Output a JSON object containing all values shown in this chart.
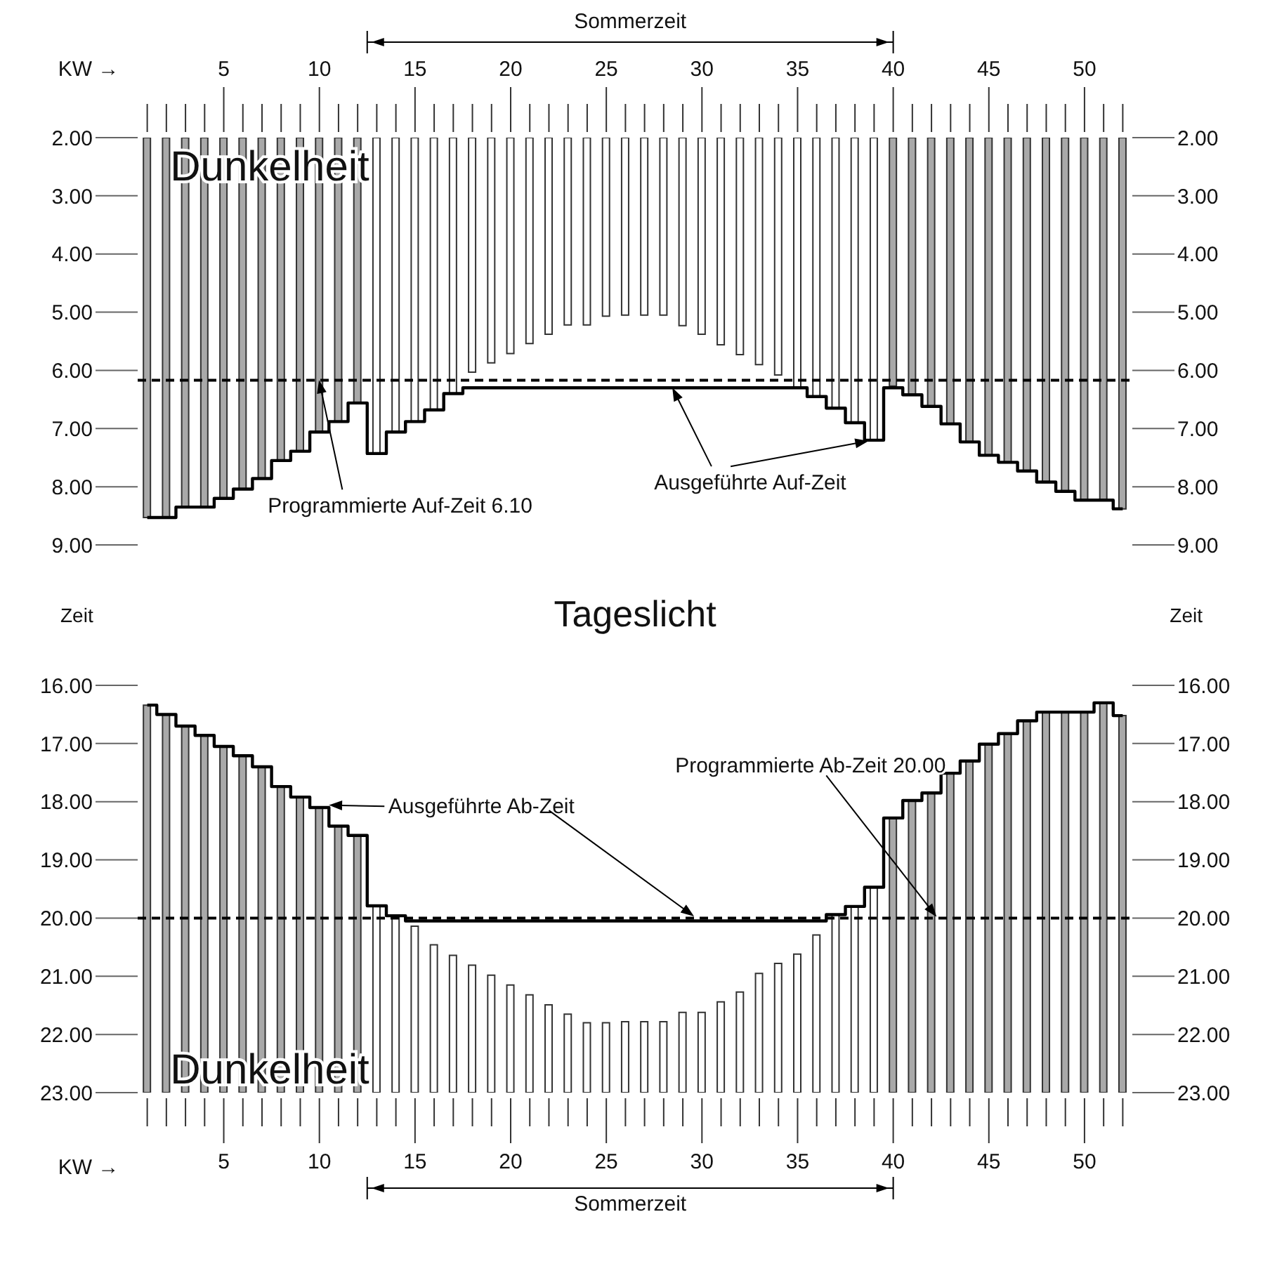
{
  "chart_data": [
    {
      "type": "bar",
      "xlabel": "KW →",
      "ylabel": "Zeit",
      "y2label": "Zeit",
      "categories": [
        null,
        null,
        null,
        null,
        "5",
        null,
        null,
        null,
        null,
        "10",
        null,
        null,
        null,
        null,
        "15",
        null,
        null,
        null,
        null,
        "20",
        null,
        null,
        null,
        null,
        "25",
        null,
        null,
        null,
        null,
        "30",
        null,
        null,
        null,
        null,
        "35",
        null,
        null,
        null,
        null,
        "40",
        null,
        null,
        null,
        null,
        "45",
        null,
        null,
        null,
        null,
        "50",
        null,
        null
      ],
      "series": [
        {
          "base": [
            2,
            2,
            2,
            2,
            2,
            2,
            2,
            2,
            2,
            2,
            2,
            2,
            2,
            2,
            2,
            2,
            2,
            2,
            2,
            2,
            2,
            2,
            2,
            2,
            2,
            2,
            2,
            2,
            2,
            2,
            2,
            2,
            2,
            2,
            2,
            2,
            2,
            2,
            2,
            2,
            2,
            2,
            2,
            2,
            2,
            2,
            2,
            2,
            2,
            2,
            2,
            2
          ],
          "values": [
            6.53,
            6.53,
            6.35,
            6.35,
            6.2,
            6.04,
            5.86,
            5.55,
            5.39,
            5.06,
            4.88,
            4.56,
            5.43,
            5.06,
            4.88,
            4.68,
            4.4,
            4.03,
            3.87,
            3.71,
            3.54,
            3.38,
            3.22,
            3.22,
            3.07,
            3.05,
            3.05,
            3.05,
            3.23,
            3.38,
            3.56,
            3.73,
            3.9,
            4.08,
            4.3,
            4.45,
            4.65,
            4.9,
            5.2,
            4.27,
            4.42,
            4.62,
            4.92,
            5.23,
            5.46,
            5.58,
            5.73,
            5.92,
            6.08,
            6.23,
            6.23,
            6.38
          ],
          "colors": [
            "#a9a9a9",
            "#a9a9a9",
            "#a9a9a9",
            "#a9a9a9",
            "#a9a9a9",
            "#a9a9a9",
            "#a9a9a9",
            "#a9a9a9",
            "#a9a9a9",
            "#a9a9a9",
            "#a9a9a9",
            "#a9a9a9",
            "#ffffff",
            "#ffffff",
            "#ffffff",
            "#ffffff",
            "#ffffff",
            "#ffffff",
            "#ffffff",
            "#ffffff",
            "#ffffff",
            "#ffffff",
            "#ffffff",
            "#ffffff",
            "#ffffff",
            "#ffffff",
            "#ffffff",
            "#ffffff",
            "#ffffff",
            "#ffffff",
            "#ffffff",
            "#ffffff",
            "#ffffff",
            "#ffffff",
            "#ffffff",
            "#ffffff",
            "#ffffff",
            "#ffffff",
            "#ffffff",
            "#a9a9a9",
            "#a9a9a9",
            "#a9a9a9",
            "#a9a9a9",
            "#a9a9a9",
            "#a9a9a9",
            "#a9a9a9",
            "#a9a9a9",
            "#a9a9a9",
            "#a9a9a9",
            "#a9a9a9",
            "#a9a9a9",
            "#a9a9a9"
          ]
        },
        {
          "type": "step",
          "name": "Ausgeführte Auf-Zeit",
          "color": "#000000",
          "values": [
            8.53,
            8.53,
            8.35,
            8.35,
            8.2,
            8.04,
            7.86,
            7.55,
            7.39,
            7.06,
            6.88,
            6.56,
            7.43,
            7.06,
            6.88,
            6.68,
            6.4,
            6.3,
            6.3,
            6.3,
            6.3,
            6.3,
            6.3,
            6.3,
            6.3,
            6.3,
            6.3,
            6.3,
            6.3,
            6.3,
            6.3,
            6.3,
            6.3,
            6.3,
            6.3,
            6.45,
            6.65,
            6.9,
            7.2,
            6.3,
            6.42,
            6.62,
            6.92,
            7.23,
            7.46,
            7.58,
            7.73,
            7.92,
            8.08,
            8.23,
            8.23,
            8.38
          ]
        }
      ],
      "ylim": [
        9,
        2
      ],
      "yticks": [
        {
          "value": 2,
          "label": "2.00"
        },
        {
          "value": 3,
          "label": "3.00"
        },
        {
          "value": 4,
          "label": "4.00"
        },
        {
          "value": 5,
          "label": "5.00"
        },
        {
          "value": 6,
          "label": "6.00"
        },
        {
          "value": 7,
          "label": "7.00"
        },
        {
          "value": 8,
          "label": "8.00"
        },
        {
          "value": 9,
          "label": "9.00"
        }
      ],
      "y2lim": [
        9,
        2
      ],
      "y2ticks": [
        {
          "value": 2,
          "label": "2.00"
        },
        {
          "value": 3,
          "label": "3.00"
        },
        {
          "value": 4,
          "label": "4.00"
        },
        {
          "value": 5,
          "label": "5.00"
        },
        {
          "value": 6,
          "label": "6.00"
        },
        {
          "value": 7,
          "label": "7.00"
        },
        {
          "value": 8,
          "label": "8.00"
        },
        {
          "value": 9,
          "label": "9.00"
        }
      ],
      "ref_lines": [
        {
          "axis": "y",
          "value": 6.17,
          "label": "Programmierte Auf-Zeit 6.10",
          "color": "#000000",
          "line_style": "dashed"
        }
      ],
      "annotations": [
        "Sommerzeit",
        "Dunkelheit",
        "Tageslicht"
      ]
    },
    {
      "type": "bar",
      "xlabel": "KW →",
      "categories": [
        null,
        null,
        null,
        null,
        "5",
        null,
        null,
        null,
        null,
        "10",
        null,
        null,
        null,
        null,
        "15",
        null,
        null,
        null,
        null,
        "20",
        null,
        null,
        null,
        null,
        "25",
        null,
        null,
        null,
        null,
        "30",
        null,
        null,
        null,
        null,
        "35",
        null,
        null,
        null,
        null,
        "40",
        null,
        null,
        null,
        null,
        "45",
        null,
        null,
        null,
        null,
        "50",
        null,
        null
      ],
      "series": [
        {
          "base": [
            23,
            23,
            23,
            23,
            23,
            23,
            23,
            23,
            23,
            23,
            23,
            23,
            23,
            23,
            23,
            23,
            23,
            23,
            23,
            23,
            23,
            23,
            23,
            23,
            23,
            23,
            23,
            23,
            23,
            23,
            23,
            23,
            23,
            23,
            23,
            23,
            23,
            23,
            23,
            23,
            23,
            23,
            23,
            23,
            23,
            23,
            23,
            23,
            23,
            23,
            23,
            23
          ],
          "values": [
            -6.66,
            -6.5,
            -6.3,
            -6.14,
            -5.95,
            -5.79,
            -5.6,
            -5.26,
            -5.08,
            -4.9,
            -4.58,
            -4.42,
            -3.21,
            -3.04,
            -2.86,
            -2.54,
            -2.36,
            -2.19,
            -2.02,
            -1.85,
            -1.68,
            -1.51,
            -1.35,
            -1.2,
            -1.2,
            -1.22,
            -1.22,
            -1.22,
            -1.38,
            -1.38,
            -1.56,
            -1.73,
            -2.05,
            -2.22,
            -2.38,
            -2.71,
            -3.06,
            -3.2,
            -3.53,
            -4.72,
            -5.02,
            -5.15,
            -5.49,
            -5.7,
            -5.99,
            -6.17,
            -6.39,
            -6.54,
            -6.54,
            -6.54,
            -6.7,
            -6.48
          ],
          "colors": [
            "#a9a9a9",
            "#a9a9a9",
            "#a9a9a9",
            "#a9a9a9",
            "#a9a9a9",
            "#a9a9a9",
            "#a9a9a9",
            "#a9a9a9",
            "#a9a9a9",
            "#a9a9a9",
            "#a9a9a9",
            "#a9a9a9",
            "#ffffff",
            "#ffffff",
            "#ffffff",
            "#ffffff",
            "#ffffff",
            "#ffffff",
            "#ffffff",
            "#ffffff",
            "#ffffff",
            "#ffffff",
            "#ffffff",
            "#ffffff",
            "#ffffff",
            "#ffffff",
            "#ffffff",
            "#ffffff",
            "#ffffff",
            "#ffffff",
            "#ffffff",
            "#ffffff",
            "#ffffff",
            "#ffffff",
            "#ffffff",
            "#ffffff",
            "#ffffff",
            "#ffffff",
            "#ffffff",
            "#a9a9a9",
            "#a9a9a9",
            "#a9a9a9",
            "#a9a9a9",
            "#a9a9a9",
            "#a9a9a9",
            "#a9a9a9",
            "#a9a9a9",
            "#a9a9a9",
            "#a9a9a9",
            "#a9a9a9",
            "#a9a9a9",
            "#a9a9a9"
          ]
        },
        {
          "type": "step",
          "name": "Ausgeführte Ab-Zeit",
          "color": "#000000",
          "values": [
            16.34,
            16.5,
            16.7,
            16.86,
            17.05,
            17.21,
            17.4,
            17.74,
            17.92,
            18.1,
            18.42,
            18.58,
            19.79,
            19.96,
            20.05,
            20.05,
            20.05,
            20.05,
            20.05,
            20.05,
            20.05,
            20.05,
            20.05,
            20.05,
            20.05,
            20.05,
            20.05,
            20.05,
            20.05,
            20.05,
            20.05,
            20.05,
            20.05,
            20.05,
            20.05,
            20.05,
            19.94,
            19.8,
            19.47,
            18.28,
            17.98,
            17.85,
            17.51,
            17.3,
            17.01,
            16.83,
            16.61,
            16.46,
            16.46,
            16.46,
            16.3,
            16.52
          ]
        }
      ],
      "ylim": [
        23,
        16
      ],
      "yticks": [
        {
          "value": 16,
          "label": "16.00"
        },
        {
          "value": 17,
          "label": "17.00"
        },
        {
          "value": 18,
          "label": "18.00"
        },
        {
          "value": 19,
          "label": "19.00"
        },
        {
          "value": 20,
          "label": "20.00"
        },
        {
          "value": 21,
          "label": "21.00"
        },
        {
          "value": 22,
          "label": "22.00"
        },
        {
          "value": 23,
          "label": "23.00"
        }
      ],
      "y2lim": [
        23,
        16
      ],
      "y2ticks": [
        {
          "value": 16,
          "label": "16.00"
        },
        {
          "value": 17,
          "label": "17.00"
        },
        {
          "value": 18,
          "label": "18.00"
        },
        {
          "value": 19,
          "label": "19.00"
        },
        {
          "value": 20,
          "label": "20.00"
        },
        {
          "value": 21,
          "label": "21.00"
        },
        {
          "value": 22,
          "label": "22.00"
        },
        {
          "value": 23,
          "label": "23.00"
        }
      ],
      "ref_lines": [
        {
          "axis": "y",
          "value": 20,
          "label": "Programmierte Ab-Zeit 20.00",
          "color": "#000000",
          "line_style": "dashed"
        }
      ],
      "annotations": [
        "Dunkelheit",
        "Sommerzeit"
      ]
    }
  ]
}
